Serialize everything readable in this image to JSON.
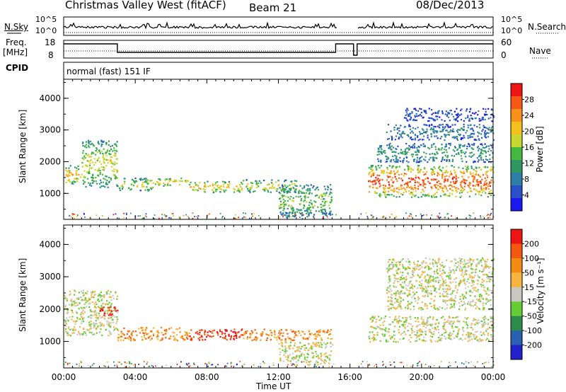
{
  "header": {
    "station": "Christmas Valley West (fitACF)",
    "beam": "Beam 21",
    "date": "08/Dec/2013"
  },
  "panels": {
    "nsky": {
      "label": "N.Sky",
      "ticks": [
        "10^5",
        "10^0"
      ],
      "right_label": "N.Search",
      "right_ticks": [
        "10^5",
        "10^0"
      ]
    },
    "freq": {
      "label_line1": "Freq.",
      "label_line2": "[MHz]",
      "ticks": [
        "18",
        "8"
      ],
      "right_label": "Nave",
      "right_ticks": [
        "60",
        "0"
      ]
    },
    "cpid": {
      "label": "CPID",
      "value": "normal (fast) 151 IF"
    }
  },
  "chart_data": [
    {
      "type": "heatmap",
      "name": "power-panel",
      "xlabel": "Time UT",
      "ylabel": "Slant Range [km]",
      "x_range_hours": [
        0,
        24
      ],
      "ylim": [
        180,
        4600
      ],
      "y_ticks": [
        1000,
        2000,
        3000,
        4000
      ],
      "colorbar": {
        "label": "Power [dB]",
        "ticks": [
          4,
          8,
          12,
          16,
          20,
          24,
          28
        ],
        "colors": [
          "#1a1aee",
          "#2a50c8",
          "#2d7fa8",
          "#2e9860",
          "#44b840",
          "#c8d832",
          "#f6c01c",
          "#f8901a",
          "#f45a14",
          "#ee1414"
        ]
      },
      "bands": [
        {
          "t0": 0.0,
          "t1": 1.0,
          "r0": 1300,
          "r1": 1900,
          "level": 6
        },
        {
          "t0": 1.0,
          "t1": 3.0,
          "r0": 1200,
          "r1": 2700,
          "level": 5
        },
        {
          "t0": 3.0,
          "t1": 5.0,
          "r0": 1100,
          "r1": 1500,
          "level": 5
        },
        {
          "t0": 5.0,
          "t1": 7.0,
          "r0": 1250,
          "r1": 1500,
          "level": 6
        },
        {
          "t0": 7.0,
          "t1": 10.0,
          "r0": 1050,
          "r1": 1400,
          "level": 6
        },
        {
          "t0": 10.0,
          "t1": 13.0,
          "r0": 1050,
          "r1": 1450,
          "level": 5
        },
        {
          "t0": 12.0,
          "t1": 15.0,
          "r0": 280,
          "r1": 1300,
          "level": 4
        },
        {
          "t0": 17.0,
          "t1": 24.0,
          "r0": 900,
          "r1": 1900,
          "level": 8
        },
        {
          "t0": 17.5,
          "t1": 24.0,
          "r0": 2000,
          "r1": 2600,
          "level": 3
        },
        {
          "t0": 18.0,
          "t1": 24.0,
          "r0": 2700,
          "r1": 3200,
          "level": 2
        },
        {
          "t0": 19.0,
          "t1": 24.0,
          "r0": 3300,
          "r1": 3700,
          "level": 1
        }
      ]
    },
    {
      "type": "heatmap",
      "name": "velocity-panel",
      "xlabel": "Time UT",
      "ylabel": "Slant Range [km]",
      "x_range_hours": [
        0,
        24
      ],
      "ylim": [
        180,
        4600
      ],
      "y_ticks": [
        1000,
        2000,
        3000,
        4000
      ],
      "x_ticks": [
        "00:00",
        "04:00",
        "08:00",
        "12:00",
        "16:00",
        "20:00",
        "00:00"
      ],
      "colorbar": {
        "label": "Velocity [m s⁻¹]",
        "ticks": [
          200,
          100,
          50,
          15,
          -15,
          -50,
          -100,
          -200
        ],
        "colors": [
          "#2222cc",
          "#2a60b0",
          "#2e8a4a",
          "#66cc33",
          "#c8c8c0",
          "#f7b540",
          "#f58a12",
          "#f25810",
          "#ee1414"
        ]
      },
      "bands": [
        {
          "t0": 0.0,
          "t1": 3.0,
          "r0": 1200,
          "r1": 2600,
          "level": 4
        },
        {
          "t0": 2.0,
          "t1": 3.0,
          "r0": 1800,
          "r1": 2100,
          "level": 8
        },
        {
          "t0": 3.0,
          "t1": 7.0,
          "r0": 1050,
          "r1": 1450,
          "level": 6
        },
        {
          "t0": 7.0,
          "t1": 10.0,
          "r0": 1050,
          "r1": 1400,
          "level": 8
        },
        {
          "t0": 10.0,
          "t1": 15.0,
          "r0": 1050,
          "r1": 1400,
          "level": 6
        },
        {
          "t0": 12.0,
          "t1": 15.0,
          "r0": 300,
          "r1": 1000,
          "level": 4
        },
        {
          "t0": 17.0,
          "t1": 24.0,
          "r0": 1000,
          "r1": 1800,
          "level": 4
        },
        {
          "t0": 18.0,
          "t1": 24.0,
          "r0": 2000,
          "r1": 3600,
          "level": 4
        }
      ]
    }
  ]
}
